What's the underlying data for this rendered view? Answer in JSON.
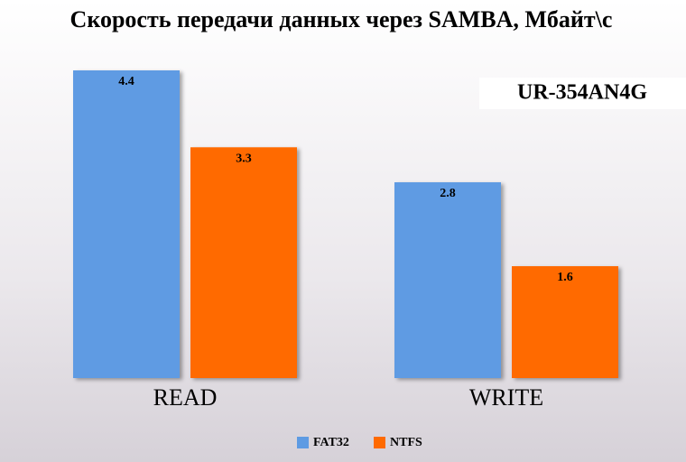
{
  "chart_data": {
    "type": "bar",
    "title": "Скорость передачи данных через SAMBA, Мбайт\\с",
    "annotation": "UR-354AN4G",
    "categories": [
      "READ",
      "WRITE"
    ],
    "series": [
      {
        "name": "FAT32",
        "color": "#5e9be3",
        "values": [
          4.4,
          2.8
        ]
      },
      {
        "name": "NTFS",
        "color": "#ff6a00",
        "values": [
          3.3,
          1.6
        ]
      }
    ]
  }
}
